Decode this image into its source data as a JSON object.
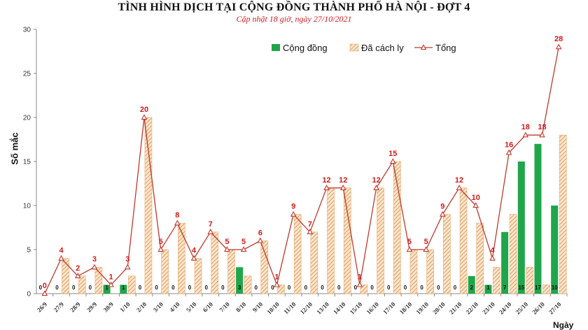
{
  "chart_data": {
    "type": "bar",
    "title": "TÌNH HÌNH DỊCH TẠI CỘNG ĐỒNG THÀNH PHỐ HÀ NỘI - ĐỢT 4",
    "subtitle": "Cập nhật 18 giờ, ngày 27/10/2021",
    "ylabel": "Số mắc",
    "xlabel": "Ngày",
    "ylim": [
      0,
      30
    ],
    "yticks": [
      0,
      5,
      10,
      15,
      20,
      25,
      30
    ],
    "legend_position": "top-right",
    "grid": false,
    "categories": [
      "26/9",
      "27/9",
      "28/9",
      "29/9",
      "30/9",
      "1/10",
      "2/10",
      "3/10",
      "4/10",
      "5/10",
      "6/10",
      "7/10",
      "8/10",
      "9/10",
      "10/10",
      "11/10",
      "12/10",
      "13/10",
      "14/10",
      "15/10",
      "16/10",
      "17/10",
      "18/10",
      "19/10",
      "20/10",
      "21/10",
      "22/10",
      "23/10",
      "24/10",
      "25/10",
      "26/10",
      "27/10"
    ],
    "series": [
      {
        "name": "Cộng đồng",
        "type": "bar",
        "color": "#1fa64a",
        "values": [
          0,
          0,
          0,
          0,
          1,
          1,
          0,
          0,
          0,
          0,
          0,
          0,
          3,
          0,
          0,
          0,
          0,
          0,
          0,
          0,
          0,
          0,
          0,
          0,
          0,
          0,
          2,
          1,
          7,
          15,
          17,
          10
        ]
      },
      {
        "name": "Đã cách ly",
        "type": "bar",
        "color": "#e8a35a",
        "values": [
          0,
          4,
          2,
          3,
          0,
          2,
          20,
          5,
          8,
          4,
          7,
          5,
          2,
          6,
          1,
          9,
          7,
          12,
          12,
          1,
          12,
          15,
          5,
          5,
          9,
          12,
          8,
          3,
          9,
          3,
          1,
          18
        ]
      },
      {
        "name": "Tổng",
        "type": "line",
        "color": "#c0392b",
        "values": [
          0,
          4,
          2,
          3,
          1,
          3,
          20,
          5,
          8,
          4,
          7,
          5,
          5,
          6,
          1,
          9,
          7,
          12,
          12,
          1,
          12,
          15,
          5,
          5,
          9,
          12,
          10,
          4,
          16,
          18,
          18,
          28
        ]
      }
    ]
  }
}
